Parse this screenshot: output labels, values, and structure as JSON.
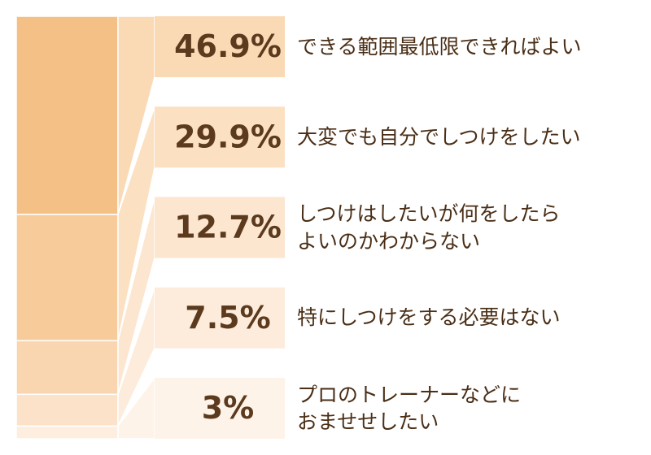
{
  "chart_data": {
    "type": "stacked-callout",
    "categories": [
      "できる範囲最低限できればよい",
      "大変でも自分でしつけをしたい",
      "しつけはしたいが何をしたら\nよいのかわからない",
      "特にしつけをする必要はない",
      "プロのトレーナーなどに\nおませせしたい"
    ],
    "values": [
      46.9,
      29.9,
      12.7,
      7.5,
      3
    ],
    "value_labels": [
      "46.9%",
      "29.9%",
      "12.7%",
      "7.5%",
      "3%"
    ],
    "colors": [
      "#f5c086",
      "#f7cb9a",
      "#f9d6b0",
      "#fbe2c8",
      "#fdeedf"
    ],
    "box_colors": [
      "#fad9b5",
      "#fbe0c2",
      "#fce6cf",
      "#fdecdc",
      "#fef3e8"
    ],
    "ylim": [
      0,
      100
    ]
  }
}
